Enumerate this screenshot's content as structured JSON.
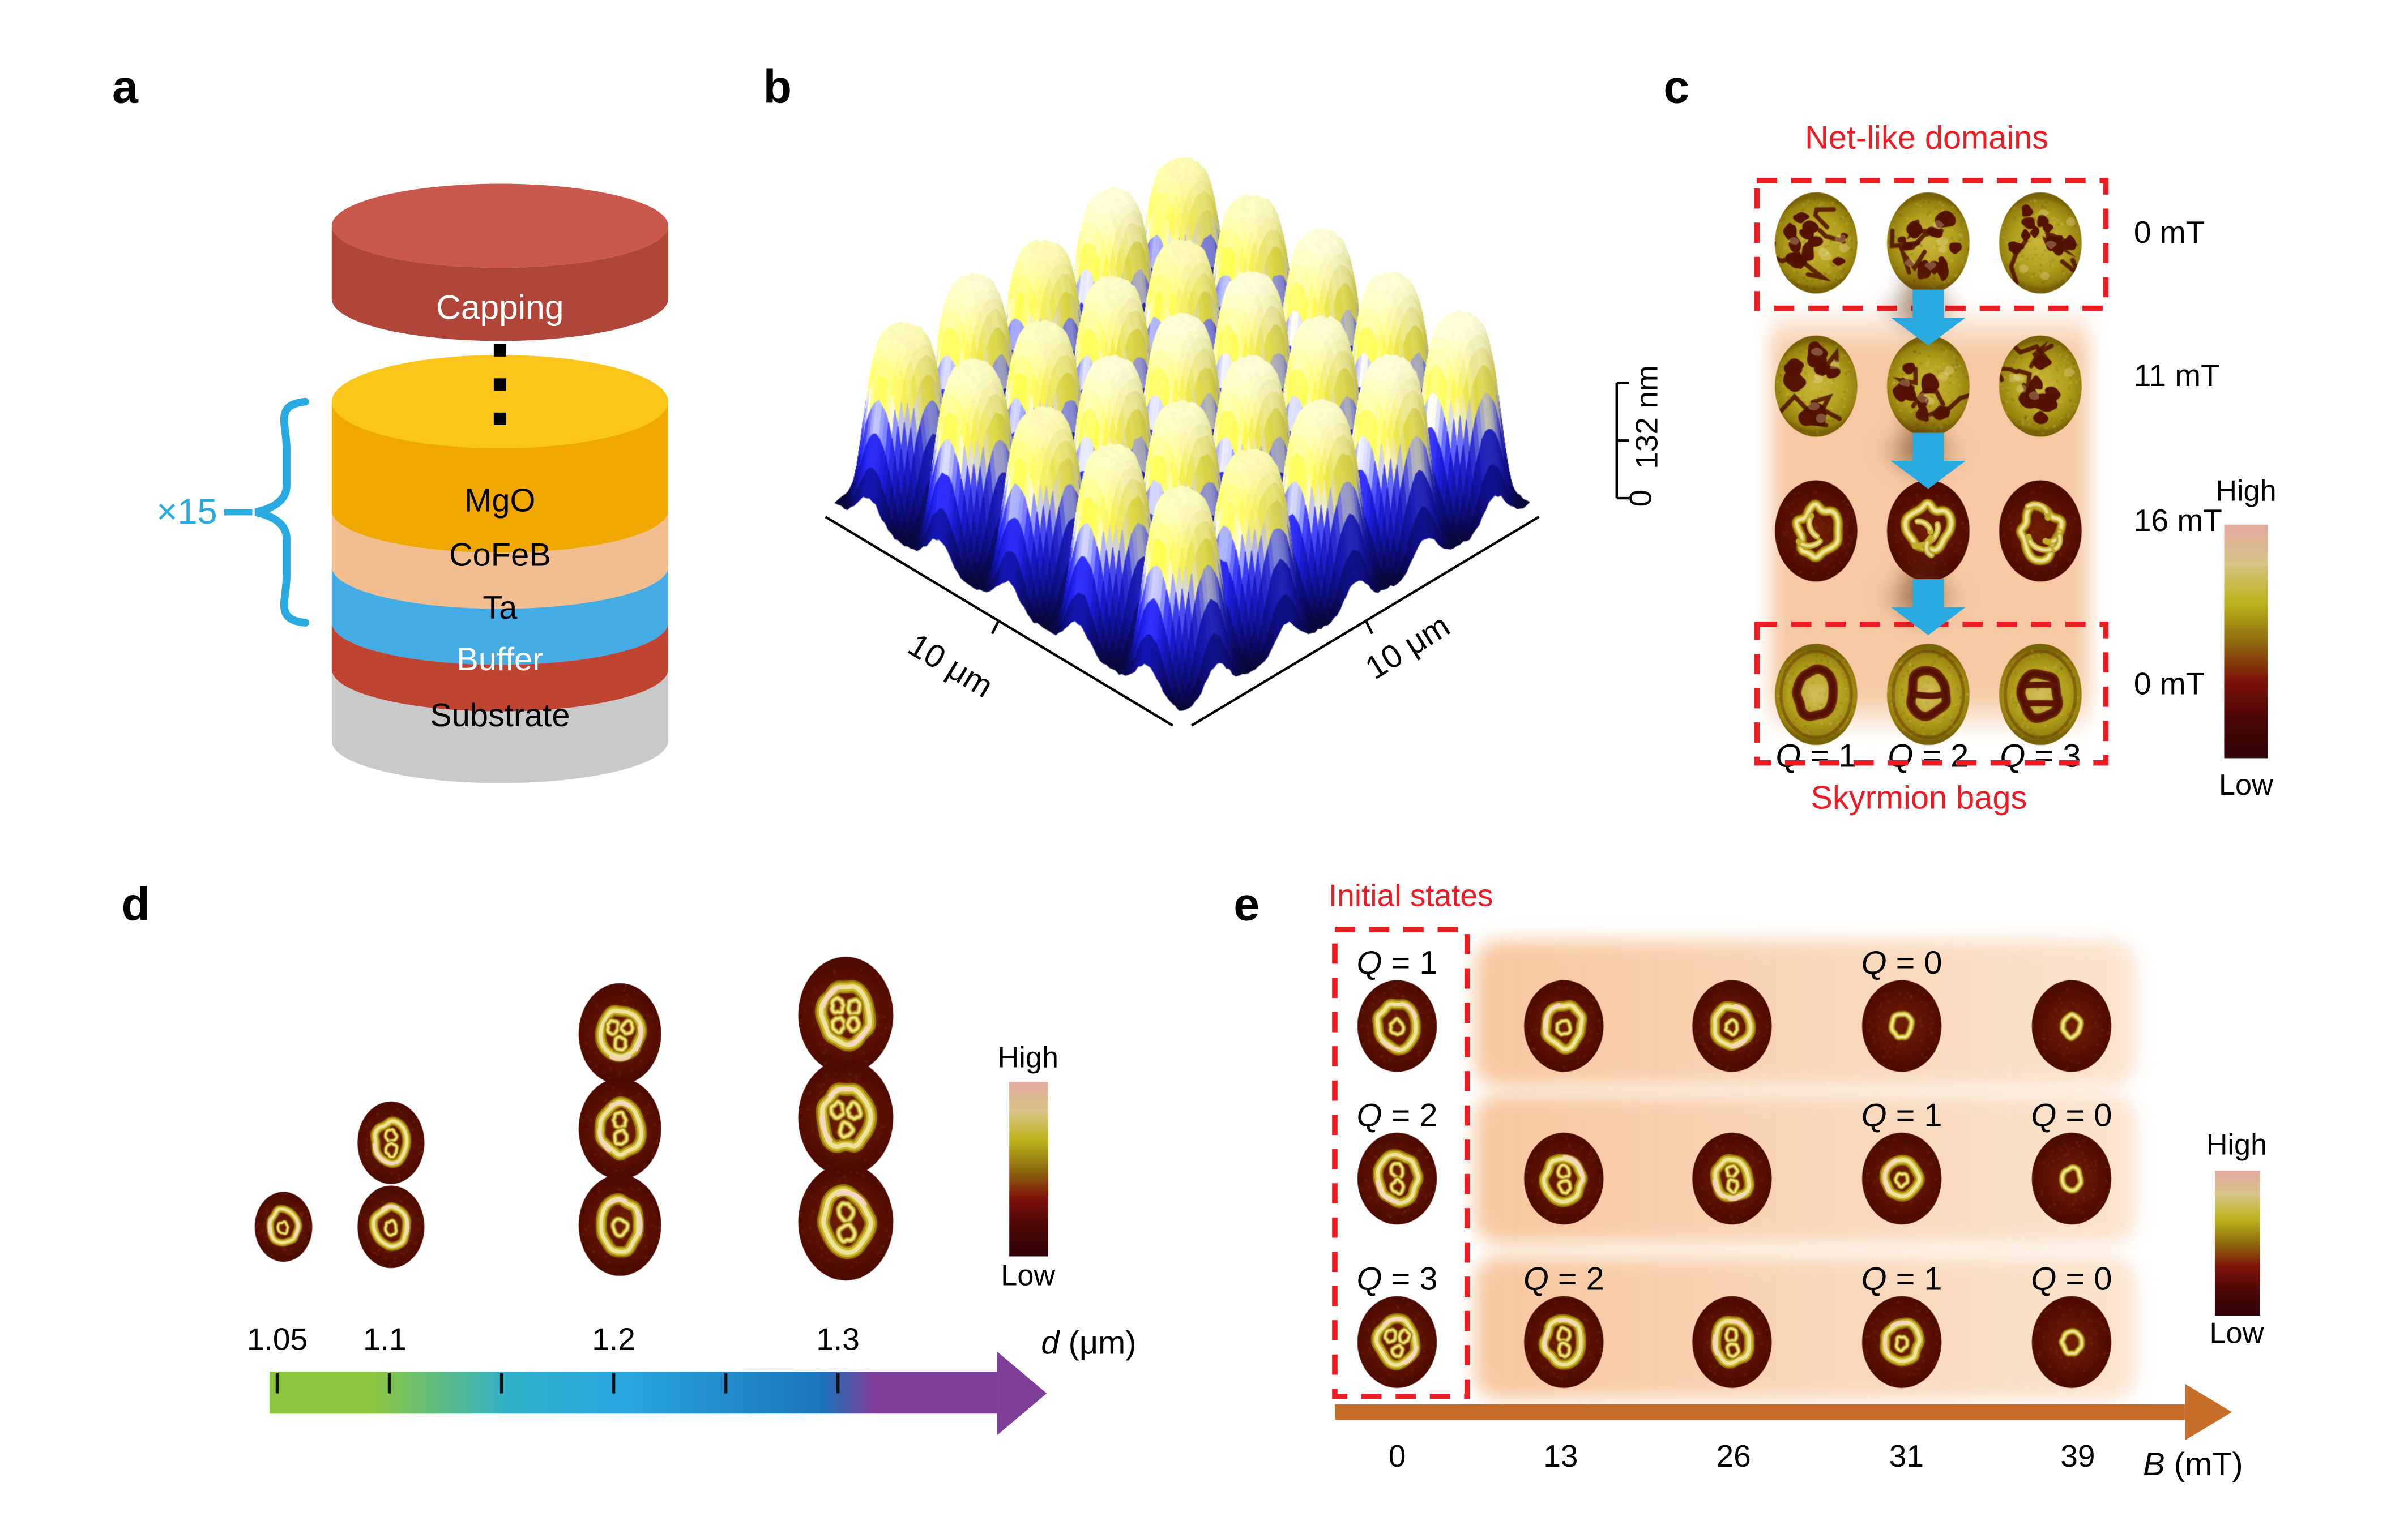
{
  "panel_letters": [
    "a",
    "b",
    "c",
    "d",
    "e"
  ],
  "panel_a": {
    "capping_label": "Capping",
    "repeat_label": "×15",
    "accent_color": "#29abe2",
    "capping_colors": {
      "side": "#b04539",
      "top": "#ca584c",
      "text": "#ffffff"
    },
    "layers": [
      {
        "label": "MgO",
        "side_color": "#f0a800",
        "top_color": "#fbc51b",
        "text_color": "#000000"
      },
      {
        "label": "CoFeB",
        "side_color": "#f2bd8f",
        "text_color": "#000000"
      },
      {
        "label": "Ta",
        "side_color": "#45abe4",
        "text_color": "#000000"
      },
      {
        "label": "Buffer",
        "side_color": "#c04432",
        "text_color": "#ffffff"
      },
      {
        "label": "Substrate",
        "side_color": "#c9c9c9",
        "text_color": "#000000"
      }
    ]
  },
  "panel_b": {
    "x_axis_label": "10 μm",
    "y_axis_label": "10 μm",
    "z_axis_max": "132 nm",
    "z_axis_min": "0",
    "surface_colors": {
      "low": "#06063a",
      "mid": "#1717c4",
      "high": "#fdfbd0"
    }
  },
  "panel_c": {
    "title": "Net-like domains",
    "title_color": "#ec1c24",
    "arrow_color": "#29abe2",
    "rows": [
      {
        "field_label": "0 mT",
        "pattern": "net",
        "boxed": true
      },
      {
        "field_label": "11 mT",
        "pattern": "net-coarse",
        "boxed": false
      },
      {
        "field_label": "16 mT",
        "pattern": "emerging-bags",
        "boxed": false
      },
      {
        "field_label": "0 mT",
        "pattern": "skyrmion-bags-inverted",
        "boxed": true
      }
    ],
    "q_labels": [
      {
        "sym": "Q",
        "rest": " = 1"
      },
      {
        "sym": "Q",
        "rest": " = 2"
      },
      {
        "sym": "Q",
        "rest": " = 3"
      }
    ],
    "bottom_label": "Skyrmion bags",
    "colorbar": {
      "high": "High",
      "low": "Low"
    }
  },
  "panel_d": {
    "columns": [
      {
        "tick": "1.05",
        "patterns": [
          "bag1"
        ]
      },
      {
        "tick": "1.1",
        "patterns": [
          "bag2",
          "bag1"
        ]
      },
      {
        "tick": "1.2",
        "patterns": [
          "bag3",
          "bag2",
          "bag1"
        ]
      },
      {
        "tick": "1.3",
        "patterns": [
          "bag4",
          "bag3",
          "bag2"
        ]
      }
    ],
    "minor_ticks": [
      "1.05",
      "1.10",
      "1.15",
      "1.20",
      "1.25",
      "1.30"
    ],
    "axis_label": {
      "sym": "d",
      "rest": " (μm)"
    },
    "gradient_colors": [
      "#8cc63e",
      "#2fb0c9",
      "#29a7e0",
      "#1b75bc",
      "#7f3f98"
    ],
    "colorbar": {
      "high": "High",
      "low": "Low"
    }
  },
  "panel_e": {
    "title": "Initial states",
    "title_color": "#ec1c24",
    "arrow_color": "#c76e2b",
    "rows": [
      {
        "q_annotations": [
          {
            "col": 0,
            "sym": "Q",
            "rest": " = 1"
          },
          {
            "col": 3,
            "sym": "Q",
            "rest": " = 0"
          }
        ],
        "patterns": [
          "bag1",
          "bag1",
          "bag1",
          "ring",
          "ring"
        ]
      },
      {
        "q_annotations": [
          {
            "col": 0,
            "sym": "Q",
            "rest": " = 2"
          },
          {
            "col": 3,
            "sym": "Q",
            "rest": " = 1"
          },
          {
            "col": 4,
            "sym": "Q",
            "rest": " = 0"
          }
        ],
        "patterns": [
          "bag2",
          "bag2",
          "bag2",
          "bag1",
          "ring"
        ]
      },
      {
        "q_annotations": [
          {
            "col": 0,
            "sym": "Q",
            "rest": " = 3"
          },
          {
            "col": 1,
            "sym": "Q",
            "rest": " = 2"
          },
          {
            "col": 3,
            "sym": "Q",
            "rest": " = 1"
          },
          {
            "col": 4,
            "sym": "Q",
            "rest": " = 0"
          }
        ],
        "patterns": [
          "bag3",
          "bag2",
          "bag2",
          "bag1",
          "ring"
        ]
      }
    ],
    "b_ticks": [
      "0",
      "13",
      "26",
      "31",
      "39"
    ],
    "axis_label": {
      "sym": "B",
      "rest": " (mT)"
    },
    "colorbar": {
      "high": "High",
      "low": "Low"
    }
  },
  "colormap": {
    "stops": [
      "#e2aba1",
      "#d8c285",
      "#bdb41d",
      "#8f6c0e",
      "#7d1208",
      "#4a0607",
      "#300406"
    ]
  }
}
